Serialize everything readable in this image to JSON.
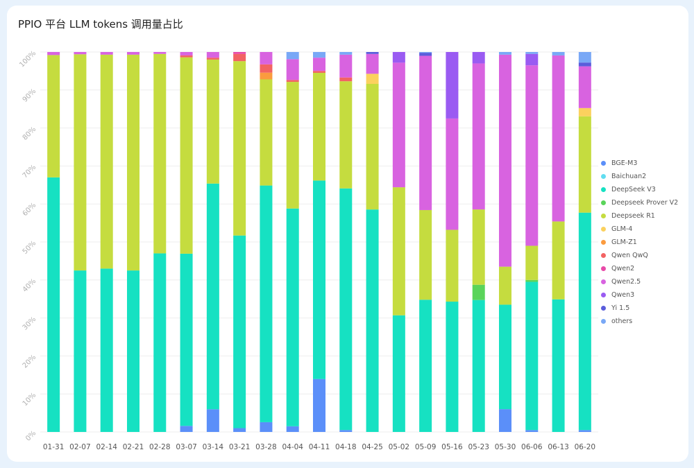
{
  "title": "PPIO 平台 LLM tokens 调用量占比",
  "chart_data": {
    "type": "bar",
    "stacked": true,
    "normalized": true,
    "ylim": [
      0,
      100
    ],
    "y_ticks": [
      "0%",
      "10%",
      "20%",
      "30%",
      "40%",
      "50%",
      "60%",
      "70%",
      "80%",
      "90%",
      "100%"
    ],
    "grid": true,
    "legend_position": "right",
    "categories": [
      "01-31",
      "02-07",
      "02-14",
      "02-21",
      "02-28",
      "03-07",
      "03-14",
      "03-21",
      "03-28",
      "04-04",
      "04-11",
      "04-18",
      "04-25",
      "05-02",
      "05-09",
      "05-16",
      "05-23",
      "05-30",
      "06-06",
      "06-13",
      "06-20"
    ],
    "series": [
      {
        "name": "BGE-M3",
        "color": "#5b8ff9",
        "values": [
          0,
          0,
          0,
          0,
          0,
          1.6,
          6.0,
          1.0,
          2.6,
          1.5,
          14.0,
          0.5,
          0,
          0,
          0,
          0,
          0,
          6.0,
          0.5,
          0,
          0.5
        ]
      },
      {
        "name": "Baichuan2",
        "color": "#61ddf0",
        "values": [
          0,
          0,
          0,
          0,
          0,
          0,
          0,
          0,
          0,
          0,
          0,
          0,
          0,
          0,
          0,
          0,
          0,
          0,
          0,
          0,
          0
        ]
      },
      {
        "name": "DeepSeek V3",
        "color": "#16e1c2",
        "values": [
          67.0,
          42.5,
          43.0,
          42.5,
          47.0,
          45.5,
          59.7,
          50.7,
          63.1,
          57.6,
          52.5,
          63.6,
          57.2,
          30.7,
          34.8,
          34.3,
          34.7,
          27.5,
          39.0,
          34.9,
          57.8
        ]
      },
      {
        "name": "Deepseek Prover V2",
        "color": "#5ad45a",
        "values": [
          0,
          0,
          0,
          0,
          0,
          0,
          0,
          0,
          0,
          0,
          0,
          0,
          0,
          0,
          0,
          0,
          4.0,
          0,
          0.5,
          0,
          0
        ]
      },
      {
        "name": "Deepseek R1",
        "color": "#c5dc3f",
        "values": [
          32.2,
          56.9,
          56.3,
          56.8,
          52.5,
          51.9,
          32.8,
          45.9,
          28.3,
          33.5,
          28.5,
          28.2,
          32.3,
          33.7,
          23.6,
          18.9,
          19.8,
          10.0,
          9.0,
          20.5,
          25.6
        ]
      },
      {
        "name": "GLM-4",
        "color": "#fbd15e",
        "values": [
          0,
          0,
          0,
          0,
          0,
          0,
          0,
          0,
          0,
          0,
          0,
          0,
          2.6,
          0,
          0,
          0,
          0,
          0,
          0,
          0,
          2.2
        ]
      },
      {
        "name": "GLM-Z1",
        "color": "#fb9b3f",
        "values": [
          0,
          0,
          0,
          0,
          0,
          0,
          0,
          0,
          1.8,
          0,
          0,
          0,
          0,
          0,
          0,
          0,
          0,
          0,
          0,
          0,
          0
        ]
      },
      {
        "name": "Qwen QwQ",
        "color": "#f26363",
        "values": [
          0,
          0,
          0,
          0,
          0,
          0.5,
          0.5,
          1.9,
          2.2,
          0.5,
          0.5,
          1.0,
          0,
          0,
          0,
          0,
          0,
          0,
          0,
          0,
          0
        ]
      },
      {
        "name": "Qwen2",
        "color": "#e84aa8",
        "values": [
          0,
          0,
          0,
          0,
          0,
          0,
          0,
          0.5,
          0,
          0,
          0,
          0,
          0,
          0,
          0,
          0,
          0,
          0,
          0,
          0,
          0
        ]
      },
      {
        "name": "Qwen2.5",
        "color": "#d863e0",
        "values": [
          0.8,
          0.6,
          0.7,
          0.7,
          0.5,
          0.9,
          1.5,
          0,
          3.3,
          5.5,
          3.5,
          6.0,
          5.1,
          32.8,
          40.6,
          29.3,
          38.4,
          55.8,
          47.5,
          43.7,
          11.1
        ]
      },
      {
        "name": "Qwen3",
        "color": "#9a5bf2",
        "values": [
          0,
          0,
          0,
          0,
          0,
          0,
          0,
          0,
          0,
          0,
          0,
          0,
          0,
          2.8,
          0,
          17.5,
          3.0,
          0,
          3.0,
          0,
          0
        ]
      },
      {
        "name": "Yi 1.5",
        "color": "#5a5ddb",
        "values": [
          0,
          0,
          0,
          0,
          0,
          0,
          0,
          0,
          0,
          0,
          0,
          0,
          0.5,
          0,
          0.8,
          0,
          0,
          0,
          0,
          0,
          1.0
        ]
      },
      {
        "name": "others",
        "color": "#79a8f6",
        "values": [
          0,
          0,
          0,
          0,
          0,
          0,
          0,
          0,
          0,
          1.9,
          1.5,
          0.7,
          0,
          0,
          0.2,
          0,
          0,
          0.7,
          0.5,
          0.9,
          2.8
        ]
      }
    ]
  }
}
